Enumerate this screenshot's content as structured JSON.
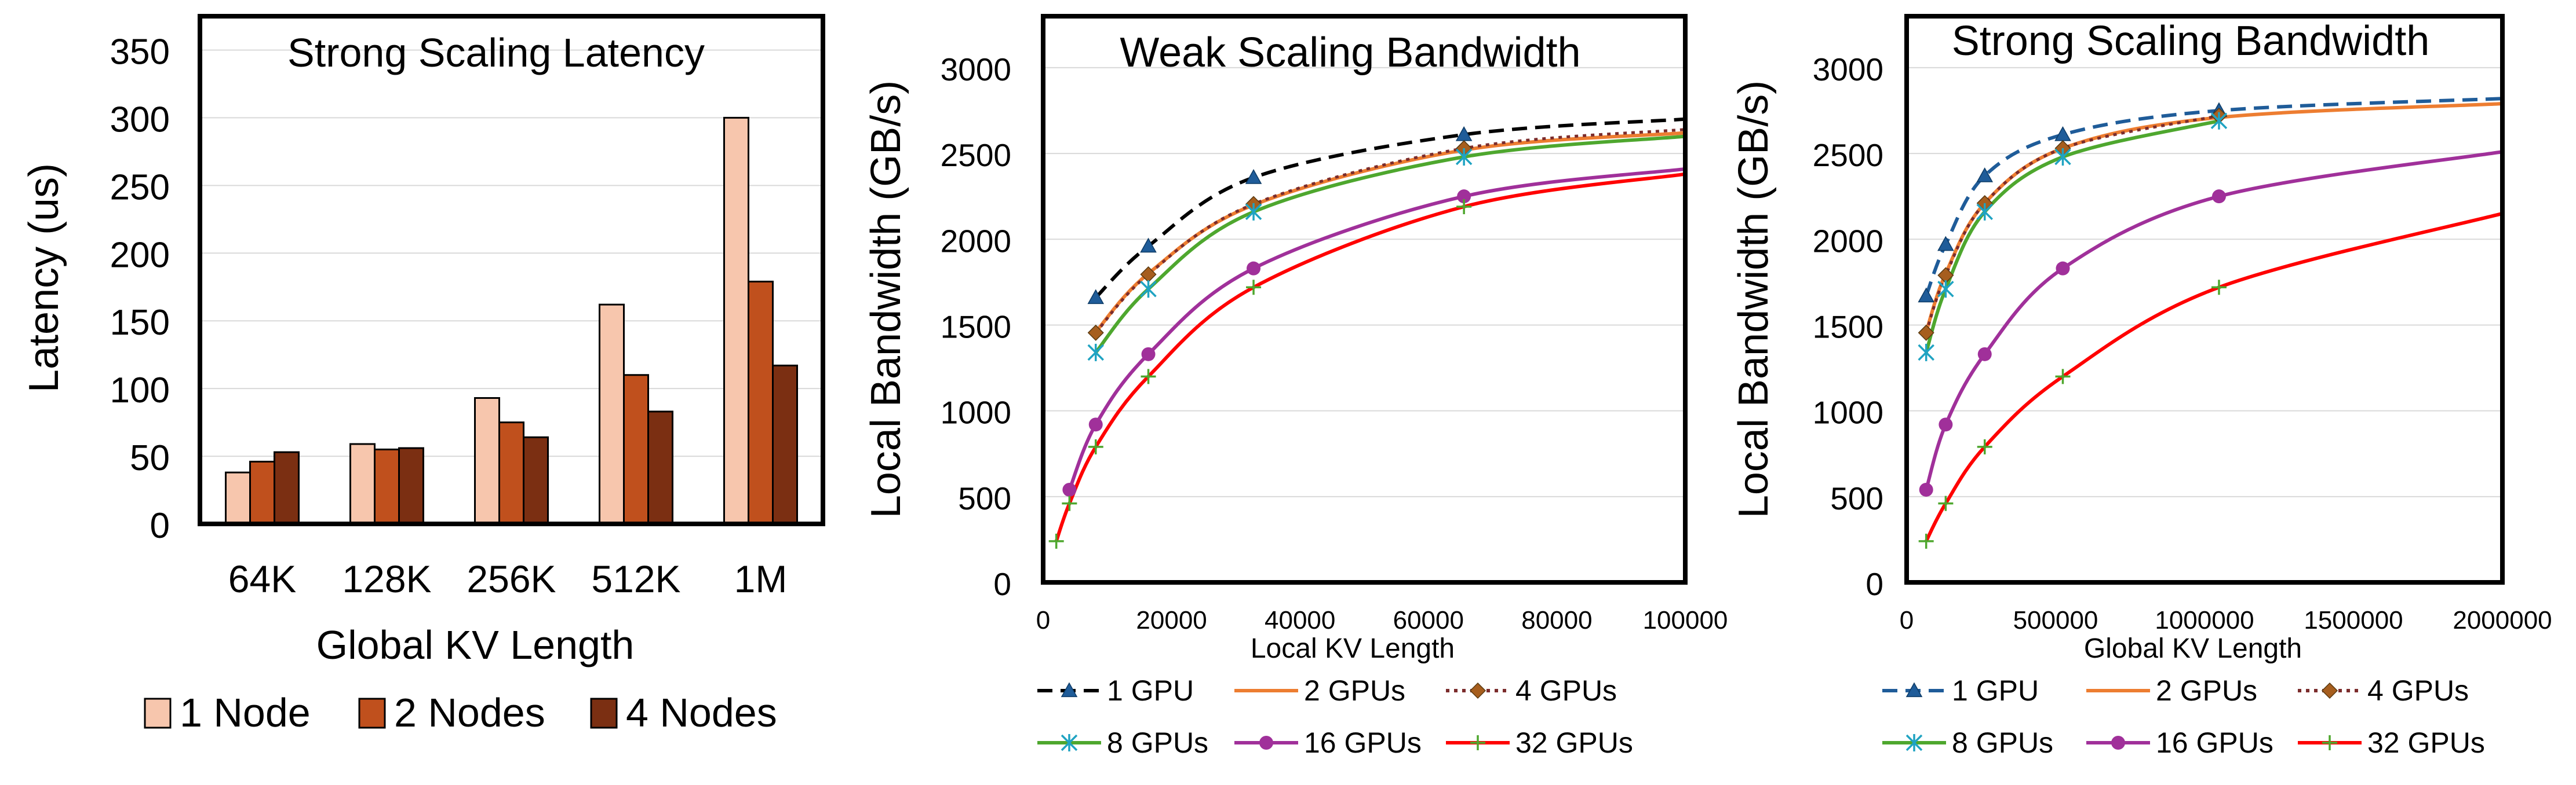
{
  "chart_data": [
    {
      "type": "bar",
      "title": "Strong Scaling Latency",
      "xlabel": "Global KV Length",
      "ylabel": "Latency (us)",
      "ylim": [
        0,
        375
      ],
      "yticks": [
        0,
        50,
        100,
        150,
        200,
        250,
        300,
        350
      ],
      "grid": true,
      "legend_position": "bottom",
      "categories": [
        "64K",
        "128K",
        "256K",
        "512K",
        "1M"
      ],
      "series": [
        {
          "name": "1 Node",
          "color": "#F7C6AD",
          "values": [
            38,
            59,
            93,
            162,
            300
          ]
        },
        {
          "name": "2 Nodes",
          "color": "#C0501D",
          "values": [
            46,
            55,
            75,
            110,
            179
          ]
        },
        {
          "name": "4 Nodes",
          "color": "#7B2F12",
          "values": [
            53,
            56,
            64,
            83,
            117
          ]
        }
      ]
    },
    {
      "type": "line",
      "title": "Weak Scaling Bandwidth",
      "xlabel": "Local KV Length",
      "ylabel": "Local Bandwidth (GB/s)",
      "xlim": [
        0,
        100000
      ],
      "ylim": [
        0,
        3300
      ],
      "xticks": [
        0,
        20000,
        40000,
        60000,
        80000,
        100000
      ],
      "yticks": [
        0,
        500,
        1000,
        1500,
        2000,
        2500,
        3000
      ],
      "grid": true,
      "legend_position": "bottom",
      "series": [
        {
          "name": "1 GPU",
          "color": "#000000",
          "dash": "dashed",
          "marker": "triangle",
          "marker_color": "#1F5C99",
          "x": [
            8192,
            16384,
            32768,
            65536,
            100000
          ],
          "y": [
            1660,
            1960,
            2360,
            2610,
            2700
          ],
          "markers": [
            0,
            1,
            2,
            3
          ]
        },
        {
          "name": "2 GPUs",
          "color": "#ED7D31",
          "dash": "solid",
          "marker": "none",
          "x": [
            8192,
            16384,
            32768,
            65536,
            100000
          ],
          "y": [
            1460,
            1800,
            2200,
            2520,
            2620
          ],
          "markers": []
        },
        {
          "name": "4 GPUs",
          "color": "#7B2C2C",
          "dash": "dotted",
          "marker": "diamond",
          "marker_color": "#A65E1E",
          "x": [
            8192,
            16384,
            32768,
            65536,
            100000
          ],
          "y": [
            1455,
            1795,
            2205,
            2530,
            2640
          ],
          "markers": [
            0,
            1,
            2,
            3
          ]
        },
        {
          "name": "8 GPUs",
          "color": "#4EA72E",
          "dash": "solid",
          "marker": "x",
          "marker_color": "#1FA3C2",
          "x": [
            8192,
            16384,
            32768,
            65536,
            100000
          ],
          "y": [
            1340,
            1710,
            2160,
            2480,
            2600
          ],
          "markers": [
            0,
            1,
            2,
            3
          ]
        },
        {
          "name": "16 GPUs",
          "color": "#A0309A",
          "dash": "solid",
          "marker": "circle",
          "marker_color": "#A0309A",
          "x": [
            4096,
            8192,
            16384,
            32768,
            65536,
            100000
          ],
          "y": [
            540,
            920,
            1330,
            1830,
            2250,
            2410
          ],
          "markers": [
            0,
            1,
            2,
            3,
            4
          ]
        },
        {
          "name": "32 GPUs",
          "color": "#FF0000",
          "dash": "solid",
          "marker": "plus",
          "marker_color": "#4EA72E",
          "x": [
            2048,
            4096,
            8192,
            16384,
            32768,
            65536,
            100000
          ],
          "y": [
            240,
            460,
            790,
            1200,
            1720,
            2190,
            2380
          ],
          "markers": [
            0,
            1,
            2,
            3,
            4,
            5
          ]
        }
      ]
    },
    {
      "type": "line",
      "title": "Strong Scaling Bandwidth",
      "xlabel": "Global KV Length",
      "ylabel": "Local Bandwidth (GB/s)",
      "xlim": [
        0,
        2000000
      ],
      "ylim": [
        0,
        3300
      ],
      "xticks": [
        0,
        500000,
        1000000,
        1500000,
        2000000
      ],
      "yticks": [
        0,
        500,
        1000,
        1500,
        2000,
        2500,
        3000
      ],
      "grid": true,
      "legend_position": "bottom",
      "series": [
        {
          "name": "1 GPU",
          "color": "#1F5C99",
          "dash": "dashed",
          "marker": "triangle",
          "marker_color": "#1F5C99",
          "x": [
            65536,
            131072,
            262144,
            524288,
            1048576,
            2000000
          ],
          "y": [
            1670,
            1970,
            2370,
            2610,
            2750,
            2820
          ],
          "markers": [
            0,
            1,
            2,
            3,
            4
          ]
        },
        {
          "name": "2 GPUs",
          "color": "#ED7D31",
          "dash": "solid",
          "marker": "none",
          "x": [
            65536,
            131072,
            262144,
            524288,
            1048576,
            2000000
          ],
          "y": [
            1460,
            1800,
            2210,
            2530,
            2710,
            2790
          ],
          "markers": []
        },
        {
          "name": "4 GPUs",
          "color": "#7B2C2C",
          "dash": "dotted",
          "marker": "diamond",
          "marker_color": "#A65E1E",
          "x": [
            65536,
            131072,
            262144,
            524288,
            1048576
          ],
          "y": [
            1455,
            1790,
            2210,
            2530,
            2720
          ],
          "markers": [
            0,
            1,
            2,
            3,
            4
          ]
        },
        {
          "name": "8 GPUs",
          "color": "#4EA72E",
          "dash": "solid",
          "marker": "x",
          "marker_color": "#1FA3C2",
          "x": [
            65536,
            131072,
            262144,
            524288,
            1048576
          ],
          "y": [
            1340,
            1710,
            2160,
            2480,
            2690
          ],
          "markers": [
            0,
            1,
            2,
            3,
            4
          ]
        },
        {
          "name": "16 GPUs",
          "color": "#A0309A",
          "dash": "solid",
          "marker": "circle",
          "marker_color": "#A0309A",
          "x": [
            65536,
            131072,
            262144,
            524288,
            1048576,
            2000000
          ],
          "y": [
            540,
            920,
            1330,
            1830,
            2250,
            2510
          ],
          "markers": [
            0,
            1,
            2,
            3,
            4
          ]
        },
        {
          "name": "32 GPUs",
          "color": "#FF0000",
          "dash": "solid",
          "marker": "plus",
          "marker_color": "#4EA72E",
          "x": [
            65536,
            131072,
            262144,
            524288,
            1048576,
            2000000
          ],
          "y": [
            240,
            460,
            790,
            1200,
            1720,
            2150
          ],
          "markers": [
            0,
            1,
            2,
            3,
            4
          ]
        }
      ]
    }
  ]
}
